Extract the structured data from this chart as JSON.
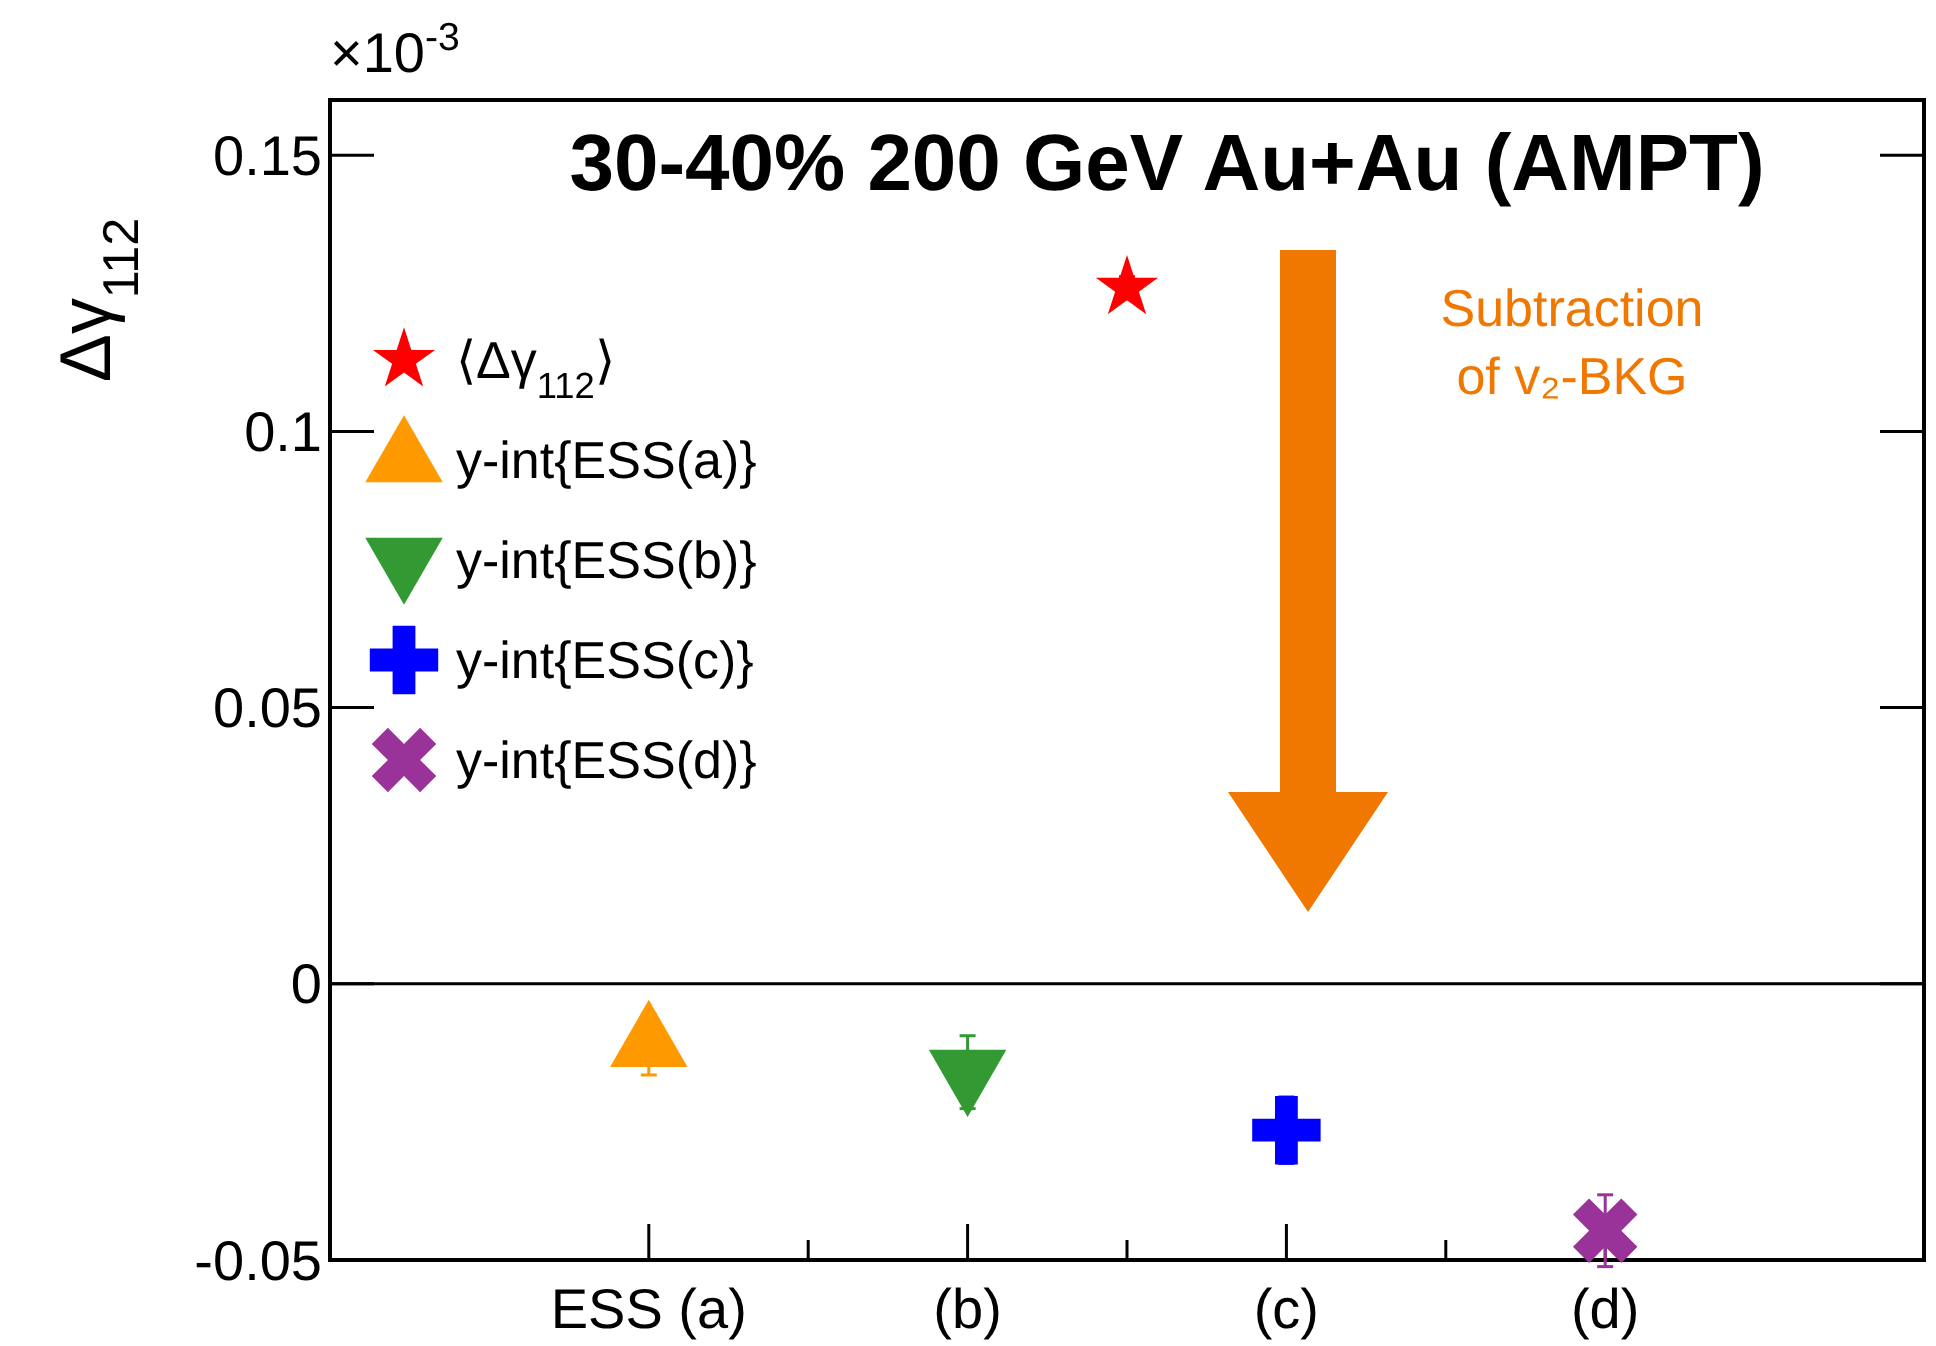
{
  "chart_data": {
    "type": "scatter",
    "title": "30-40% 200 GeV Au+Au (AMPT)",
    "ylabel": "Δγ$_{112}$",
    "annotations": [
      "×10$^{-3}$",
      "Subtraction\nof v₂-BKG"
    ],
    "categories": [
      "ESS (a)",
      null,
      "(b)",
      null,
      "(c)",
      null,
      "(d)"
    ],
    "ylim": [
      -0.05,
      0.16
    ],
    "yticks": [
      -0.05,
      0,
      0.05,
      0.1,
      0.15
    ],
    "ref_lines": [
      {
        "axis": "y",
        "value": 0,
        "color": "#000000"
      }
    ],
    "legend": "top left",
    "series": [
      {
        "name": "⟨Δγ$_{112}$⟩",
        "color": "#ff0000",
        "marker": "star",
        "values": [
          null,
          null,
          null,
          0.126,
          null,
          null,
          null
        ],
        "errors": [
          null,
          null,
          null,
          0.002,
          null,
          null,
          null
        ]
      },
      {
        "name": "y-int{ESS(a)}",
        "color": "#ff9900",
        "marker": "triangle",
        "values": [
          -0.011,
          null,
          null,
          null,
          null,
          null,
          null
        ],
        "errors": [
          0.0055,
          null,
          null,
          null,
          null,
          null,
          null
        ]
      },
      {
        "name": "y-int{ESS(b)}",
        "color": "#339933",
        "marker": "triangle-down",
        "values": [
          null,
          null,
          -0.016,
          null,
          null,
          null,
          null
        ],
        "errors": [
          null,
          null,
          0.0066,
          null,
          null,
          null,
          null
        ]
      },
      {
        "name": "y-int{ESS(c)}",
        "color": "#0000ff",
        "marker": "cross",
        "values": [
          null,
          null,
          null,
          null,
          -0.0265,
          null,
          null
        ],
        "errors": [
          null,
          null,
          null,
          null,
          0.006,
          null,
          null
        ]
      },
      {
        "name": "y-int{ESS(d)}",
        "color": "#993399",
        "marker": "x",
        "values": [
          null,
          null,
          null,
          null,
          null,
          null,
          -0.0447
        ],
        "errors": [
          null,
          null,
          null,
          null,
          null,
          null,
          0.0065
        ]
      }
    ]
  }
}
